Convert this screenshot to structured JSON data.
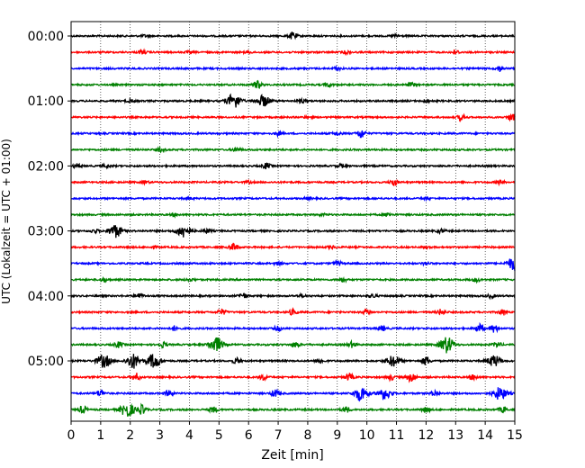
{
  "chart_data": {
    "type": "line",
    "title": "",
    "xlabel": "Zeit  [min]",
    "ylabel": "UTC (Lokalzeit = UTC + 01:00)",
    "xlim": [
      0,
      15
    ],
    "xticks": [
      0,
      1,
      2,
      3,
      4,
      5,
      6,
      7,
      8,
      9,
      10,
      11,
      12,
      13,
      14,
      15
    ],
    "x_grid": "dotted vertical",
    "row_interval_min": 15,
    "y_ticks": [
      {
        "label": "00:00",
        "row": 0
      },
      {
        "label": "01:00",
        "row": 4
      },
      {
        "label": "02:00",
        "row": 8
      },
      {
        "label": "03:00",
        "row": 12
      },
      {
        "label": "04:00",
        "row": 16
      },
      {
        "label": "05:00",
        "row": 20
      }
    ],
    "color_cycle": [
      "#000000",
      "#ff0000",
      "#0000ff",
      "#008000"
    ],
    "series": [
      {
        "start": "00:00",
        "bursts": [
          [
            7.5,
            4
          ],
          [
            2.5,
            1
          ],
          [
            11.0,
            1.5
          ]
        ]
      },
      {
        "start": "00:15",
        "bursts": [
          [
            2.4,
            2
          ],
          [
            4.0,
            1
          ],
          [
            6.0,
            1
          ],
          [
            9.3,
            1.5
          ],
          [
            13.0,
            2
          ]
        ]
      },
      {
        "start": "00:30",
        "bursts": [
          [
            9.0,
            1.5
          ],
          [
            14.5,
            3
          ]
        ]
      },
      {
        "start": "00:45",
        "bursts": [
          [
            6.3,
            4
          ],
          [
            8.7,
            2
          ],
          [
            11.5,
            2
          ]
        ]
      },
      {
        "start": "01:00",
        "bursts": [
          [
            5.5,
            8
          ],
          [
            6.5,
            6
          ],
          [
            2.0,
            1.5
          ],
          [
            7.8,
            2
          ],
          [
            12.0,
            1.5
          ]
        ]
      },
      {
        "start": "01:15",
        "bursts": [
          [
            13.2,
            3
          ],
          [
            8.0,
            1
          ],
          [
            14.9,
            4
          ]
        ]
      },
      {
        "start": "01:30",
        "bursts": [
          [
            9.8,
            5
          ],
          [
            7.0,
            2
          ],
          [
            9.0,
            2
          ]
        ]
      },
      {
        "start": "01:45",
        "bursts": [
          [
            3.0,
            2
          ],
          [
            5.6,
            2
          ]
        ]
      },
      {
        "start": "02:00",
        "bursts": [
          [
            0.2,
            2
          ],
          [
            1.2,
            1.5
          ],
          [
            6.6,
            3
          ],
          [
            9.1,
            2
          ]
        ]
      },
      {
        "start": "02:15",
        "bursts": [
          [
            10.9,
            4
          ],
          [
            14.5,
            2
          ],
          [
            2.5,
            1.5
          ],
          [
            6.0,
            1
          ]
        ]
      },
      {
        "start": "02:30",
        "bursts": [
          [
            4.0,
            1
          ],
          [
            8.0,
            1
          ],
          [
            12.0,
            1
          ]
        ]
      },
      {
        "start": "02:45",
        "bursts": [
          [
            3.5,
            1.5
          ],
          [
            10.7,
            2
          ],
          [
            8.5,
            1
          ]
        ]
      },
      {
        "start": "03:00",
        "bursts": [
          [
            1.5,
            7
          ],
          [
            3.8,
            7
          ],
          [
            0.8,
            2
          ],
          [
            4.6,
            2
          ],
          [
            12.5,
            2
          ]
        ]
      },
      {
        "start": "03:15",
        "bursts": [
          [
            5.5,
            4
          ],
          [
            2.8,
            1
          ],
          [
            8.8,
            1.5
          ],
          [
            12.0,
            1
          ]
        ]
      },
      {
        "start": "03:30",
        "bursts": [
          [
            9.0,
            2.5
          ],
          [
            15.0,
            8
          ],
          [
            7.0,
            1.5
          ],
          [
            12.0,
            1.5
          ]
        ]
      },
      {
        "start": "03:45",
        "bursts": [
          [
            1.1,
            2
          ],
          [
            4.0,
            1.5
          ],
          [
            9.2,
            2
          ],
          [
            13.7,
            2
          ]
        ]
      },
      {
        "start": "04:00",
        "bursts": [
          [
            2.3,
            3
          ],
          [
            5.8,
            3
          ],
          [
            10.2,
            2
          ],
          [
            14.2,
            2
          ],
          [
            7.8,
            1.5
          ]
        ]
      },
      {
        "start": "04:15",
        "bursts": [
          [
            5.1,
            3
          ],
          [
            7.5,
            3
          ],
          [
            10.0,
            3
          ],
          [
            12.5,
            3
          ],
          [
            14.6,
            3
          ]
        ]
      },
      {
        "start": "04:30",
        "bursts": [
          [
            3.5,
            2.5
          ],
          [
            7.0,
            2.5
          ],
          [
            10.5,
            2.5
          ],
          [
            13.8,
            5
          ],
          [
            14.3,
            4
          ]
        ]
      },
      {
        "start": "04:45",
        "bursts": [
          [
            4.9,
            8
          ],
          [
            1.6,
            3
          ],
          [
            3.1,
            3
          ],
          [
            7.6,
            3
          ],
          [
            9.5,
            3
          ],
          [
            12.7,
            9
          ],
          [
            14.4,
            3
          ]
        ]
      },
      {
        "start": "05:00",
        "bursts": [
          [
            1.1,
            7
          ],
          [
            2.1,
            8
          ],
          [
            2.8,
            8
          ],
          [
            10.9,
            6
          ],
          [
            12.0,
            5
          ],
          [
            14.3,
            6
          ],
          [
            5.6,
            3
          ],
          [
            8.4,
            3
          ]
        ]
      },
      {
        "start": "05:15",
        "bursts": [
          [
            2.2,
            4
          ],
          [
            6.5,
            3
          ],
          [
            9.4,
            4
          ],
          [
            11.5,
            5
          ],
          [
            10.8,
            3
          ],
          [
            13.6,
            3
          ]
        ]
      },
      {
        "start": "05:30",
        "bursts": [
          [
            1.0,
            4
          ],
          [
            3.3,
            3
          ],
          [
            6.9,
            4
          ],
          [
            9.8,
            8
          ],
          [
            10.6,
            6
          ],
          [
            14.5,
            7
          ],
          [
            12.3,
            3
          ]
        ]
      },
      {
        "start": "05:45",
        "bursts": [
          [
            0.4,
            4
          ],
          [
            1.9,
            8
          ],
          [
            2.4,
            5
          ],
          [
            4.8,
            3
          ],
          [
            9.3,
            3
          ],
          [
            12.0,
            3
          ],
          [
            14.6,
            3
          ]
        ]
      }
    ]
  }
}
